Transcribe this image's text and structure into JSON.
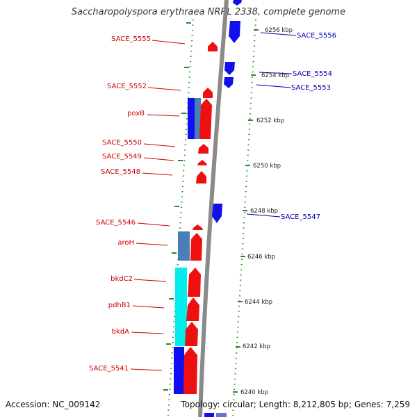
{
  "title": "Saccharopolyspora erythraea NRRL 2338, complete genome",
  "footer": {
    "accession": "Accession: NC_009142",
    "summary": "Topology: circular; Length: 8,212,805 bp; Genes: 7,259"
  },
  "colors": {
    "reverse_label": "#cc0000",
    "forward_label": "#0000aa",
    "forward_cds": "#1010ee",
    "reverse_cds": "#ee1010",
    "steelblue": "#4a7fb5",
    "cyan": "#00eeee",
    "backbone": "#888888",
    "tick": "#2a8a2a"
  },
  "kbp_ticks": [
    "6256 kbp",
    "6254 kbp",
    "6252 kbp",
    "6250 kbp",
    "6248 kbp",
    "6246 kbp",
    "6244 kbp",
    "6242 kbp",
    "6240 kbp"
  ],
  "left_labels": [
    "SACE_5555",
    "SACE_5552",
    "poxB",
    "SACE_5550",
    "SACE_5549",
    "SACE_5548",
    "SACE_5546",
    "aroH",
    "bkdC2",
    "pdhB1",
    "bkdA",
    "SACE_5541"
  ],
  "right_labels": [
    "SACE_5556",
    "SACE_5554",
    "SACE_5553",
    "SACE_5547"
  ]
}
